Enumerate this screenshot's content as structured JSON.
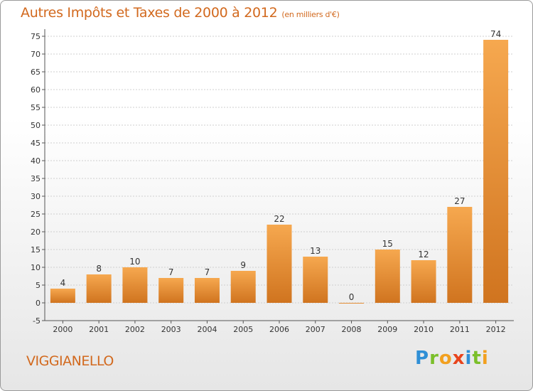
{
  "title": "Autres Impôts et Taxes de 2000 à 2012",
  "subtitle": "(en milliers d'€)",
  "city": "VIGGIANELLO",
  "brand": {
    "letters": [
      {
        "ch": "P",
        "color": "#2f8fd6"
      },
      {
        "ch": "r",
        "color": "#7bbf2a"
      },
      {
        "ch": "o",
        "color": "#f2a01f"
      },
      {
        "ch": "x",
        "color": "#e8441c"
      },
      {
        "ch": "i",
        "color": "#2f8fd6"
      },
      {
        "ch": "t",
        "color": "#7bbf2a"
      },
      {
        "ch": "i",
        "color": "#f2a01f"
      }
    ]
  },
  "colors": {
    "bar_light": "#f6a84f",
    "bar_dark": "#d0741f",
    "accent": "#d2691e"
  },
  "chart_data": {
    "type": "bar",
    "title": "Autres Impôts et Taxes de 2000 à 2012",
    "subtitle": "(en milliers d'€)",
    "categories": [
      "2000",
      "2001",
      "2002",
      "2003",
      "2004",
      "2005",
      "2006",
      "2007",
      "2008",
      "2009",
      "2010",
      "2011",
      "2012"
    ],
    "values": [
      4,
      8,
      10,
      7,
      7,
      9,
      22,
      13,
      0,
      15,
      12,
      27,
      74
    ],
    "data_labels": [
      "4",
      "8",
      "10",
      "7",
      "7",
      "9",
      "22",
      "13",
      "0",
      "15",
      "12",
      "27",
      "74"
    ],
    "ylim": [
      -5,
      75
    ],
    "yticks": [
      -5,
      0,
      5,
      10,
      15,
      20,
      25,
      30,
      35,
      40,
      45,
      50,
      55,
      60,
      65,
      70,
      75
    ],
    "xlabel": "",
    "ylabel": "",
    "grid": true
  }
}
